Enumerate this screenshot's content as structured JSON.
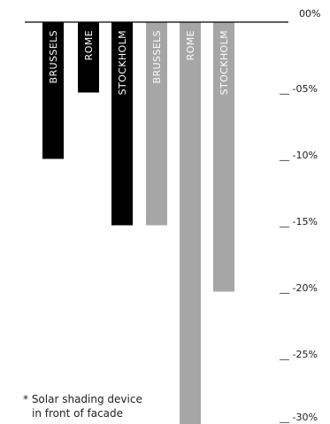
{
  "chart_data": {
    "type": "bar",
    "orientation": "vertical",
    "baseline": "top",
    "categories": [
      "BRUSSELS",
      "ROME",
      "STOCKHOLM",
      "BRUSSELS",
      "ROME",
      "STOCKHOLM"
    ],
    "values": [
      -10.3,
      -5.3,
      -15.3,
      -15.3,
      -30.5,
      -20.3
    ],
    "bar_colors": [
      "#000000",
      "#000000",
      "#000000",
      "#a6a6a6",
      "#a6a6a6",
      "#a6a6a6"
    ],
    "ylim": [
      -30,
      0
    ],
    "y_ticks": [
      0,
      -5,
      -10,
      -15,
      -20,
      -25,
      -30
    ],
    "y_tick_labels": [
      "00%",
      "-05%",
      "-10%",
      "-15%",
      "-20%",
      "-25%",
      "-30%"
    ],
    "tick_prefix": "__ ",
    "grid": false,
    "title": "",
    "xlabel": "",
    "ylabel": "",
    "note": [
      "* Solar shading device",
      "in front of facade"
    ]
  }
}
